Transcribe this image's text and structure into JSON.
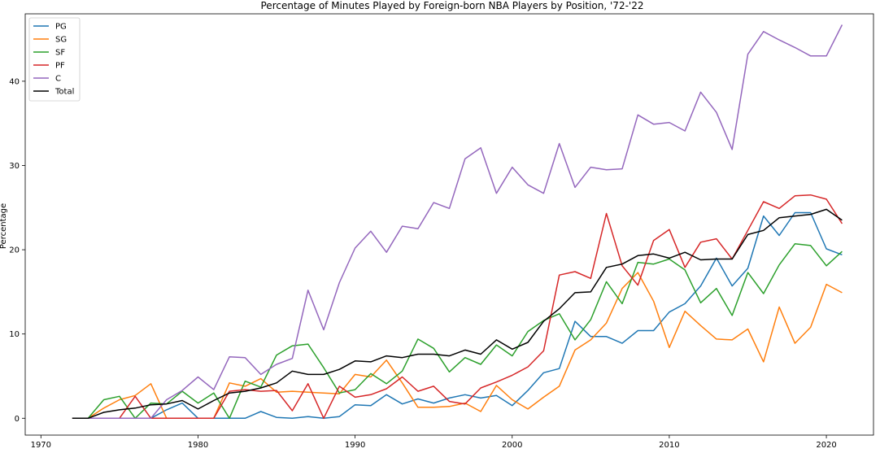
{
  "chart_data": {
    "type": "line",
    "title": "Percentage of Minutes Played by Foreign-born NBA Players by Position, '72-'22",
    "xlabel": "",
    "ylabel": "Percentage",
    "xlim": [
      1969,
      2023
    ],
    "ylim": [
      -2,
      48
    ],
    "xticks": [
      1970,
      1980,
      1990,
      2000,
      2010,
      2020
    ],
    "yticks": [
      0,
      10,
      20,
      30,
      40
    ],
    "grid": false,
    "legend_position": "top-left",
    "x": [
      1972,
      1973,
      1974,
      1975,
      1976,
      1977,
      1978,
      1979,
      1980,
      1981,
      1982,
      1983,
      1984,
      1985,
      1986,
      1987,
      1988,
      1989,
      1990,
      1991,
      1992,
      1993,
      1994,
      1995,
      1996,
      1997,
      1998,
      1999,
      2000,
      2001,
      2002,
      2003,
      2004,
      2005,
      2006,
      2007,
      2008,
      2009,
      2010,
      2011,
      2012,
      2013,
      2014,
      2015,
      2016,
      2017,
      2018,
      2019,
      2020,
      2021
    ],
    "series": [
      {
        "name": "PG",
        "color": "#1f77b4",
        "values": [
          0,
          0,
          0,
          0,
          0,
          0,
          1,
          1.8,
          0,
          0,
          0,
          0,
          0.8,
          0.1,
          0,
          0.2,
          0,
          0.2,
          1.6,
          1.5,
          2.8,
          1.7,
          2.3,
          1.8,
          2.4,
          2.8,
          2.4,
          2.7,
          1.5,
          3.3,
          5.4,
          5.9,
          11.5,
          9.7,
          9.7,
          8.9,
          10.4,
          10.4,
          12.6,
          13.6,
          15.7,
          19.0,
          15.7,
          17.8,
          24.0,
          21.7,
          24.4,
          24.4,
          20.1,
          19.4
        ]
      },
      {
        "name": "SG",
        "color": "#ff7f0e",
        "values": [
          0,
          0,
          1.2,
          2.2,
          2.7,
          4.1,
          0,
          0,
          0,
          0,
          4.2,
          3.8,
          4.7,
          3.1,
          3.2,
          3.1,
          3.0,
          2.9,
          5.2,
          4.9,
          6.9,
          4.2,
          1.3,
          1.3,
          1.4,
          1.8,
          0.8,
          3.9,
          2.2,
          1.1,
          2.5,
          3.8,
          8.1,
          9.3,
          11.3,
          15.4,
          17.3,
          13.9,
          8.4,
          12.7,
          11.0,
          9.4,
          9.3,
          10.6,
          6.7,
          13.2,
          8.9,
          10.8,
          15.9,
          14.9
        ]
      },
      {
        "name": "SF",
        "color": "#2ca02c",
        "values": [
          0,
          0,
          2.2,
          2.6,
          0,
          1.8,
          1.7,
          3.2,
          1.8,
          3.0,
          0,
          4.4,
          3.7,
          7.5,
          8.6,
          8.8,
          6.0,
          3.0,
          3.4,
          5.3,
          4.1,
          5.6,
          9.4,
          8.3,
          5.5,
          7.2,
          6.4,
          8.7,
          7.4,
          10.3,
          11.6,
          12.4,
          9.3,
          11.7,
          16.2,
          13.6,
          18.5,
          18.3,
          18.9,
          17.6,
          13.7,
          15.4,
          12.2,
          17.3,
          14.8,
          18.2,
          20.7,
          20.5,
          18.1,
          19.8
        ]
      },
      {
        "name": "PF",
        "color": "#d62728",
        "values": [
          0,
          0,
          0,
          0,
          2.6,
          0,
          0,
          0,
          0,
          0,
          3.2,
          3.4,
          3.2,
          3.3,
          0.9,
          4.1,
          0,
          3.8,
          2.5,
          2.8,
          3.5,
          4.9,
          3.2,
          3.8,
          2.0,
          1.7,
          3.6,
          4.3,
          5.1,
          6.1,
          8.0,
          17.0,
          17.4,
          16.6,
          24.3,
          18.1,
          15.8,
          21.1,
          22.4,
          17.9,
          20.9,
          21.3,
          18.9,
          22.3,
          25.7,
          24.9,
          26.4,
          26.5,
          26.0,
          23.1
        ]
      },
      {
        "name": "C",
        "color": "#9467bd",
        "values": [
          0,
          0,
          0,
          0,
          0,
          0,
          2.2,
          3.3,
          4.9,
          3.4,
          7.3,
          7.2,
          5.2,
          6.4,
          7.1,
          15.2,
          10.5,
          16.1,
          20.2,
          22.2,
          19.7,
          22.8,
          22.5,
          25.6,
          24.9,
          30.8,
          32.1,
          26.7,
          29.8,
          27.7,
          26.7,
          32.6,
          27.4,
          29.8,
          29.5,
          29.6,
          36.0,
          34.9,
          35.1,
          34.1,
          38.7,
          36.3,
          31.9,
          43.2,
          45.9,
          44.9,
          44.0,
          43.0,
          43.0,
          46.7
        ]
      },
      {
        "name": "Total",
        "color": "#000000",
        "values": [
          0,
          0,
          0.7,
          1.0,
          1.2,
          1.6,
          1.7,
          2.1,
          1.1,
          2.1,
          3.0,
          3.2,
          3.6,
          4.2,
          5.6,
          5.2,
          5.2,
          5.8,
          6.8,
          6.7,
          7.4,
          7.2,
          7.6,
          7.6,
          7.4,
          8.1,
          7.6,
          9.3,
          8.2,
          9.0,
          11.5,
          13.0,
          14.9,
          15.0,
          17.9,
          18.3,
          19.3,
          19.5,
          19.0,
          19.7,
          18.8,
          18.9,
          18.9,
          21.8,
          22.3,
          23.8,
          24.0,
          24.2,
          24.8,
          23.5
        ]
      }
    ]
  }
}
